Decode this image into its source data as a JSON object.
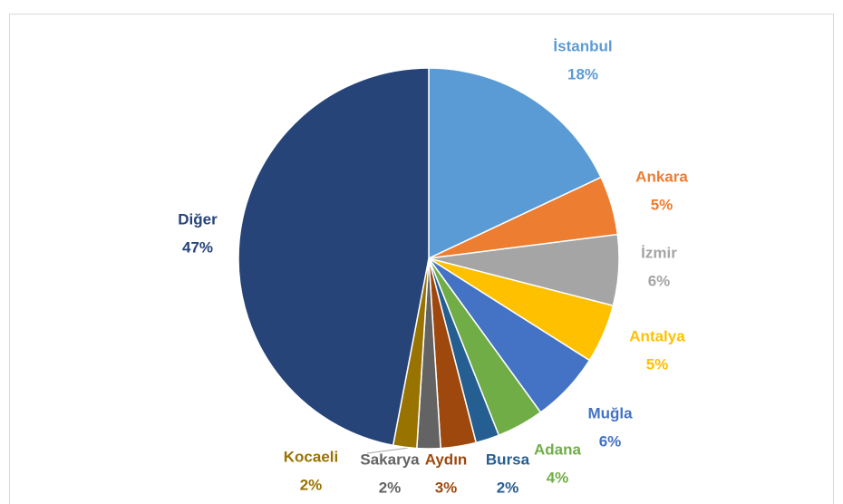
{
  "chart_data": {
    "type": "pie",
    "categories": [
      "İstanbul",
      "Ankara",
      "İzmir",
      "Antalya",
      "Muğla",
      "Adana",
      "Bursa",
      "Aydın",
      "Sakarya",
      "Kocaeli",
      "Diğer"
    ],
    "values": [
      18,
      5,
      6,
      5,
      6,
      4,
      2,
      3,
      2,
      2,
      47
    ],
    "value_labels": [
      "18%",
      "5%",
      "6%",
      "5%",
      "6%",
      "4%",
      "2%",
      "3%",
      "2%",
      "2%",
      "47%"
    ],
    "colors": [
      "#5b9bd5",
      "#ed7d31",
      "#a5a5a5",
      "#ffc000",
      "#4472c4",
      "#70ad47",
      "#255e91",
      "#9e480e",
      "#636363",
      "#997300",
      "#264478"
    ]
  }
}
